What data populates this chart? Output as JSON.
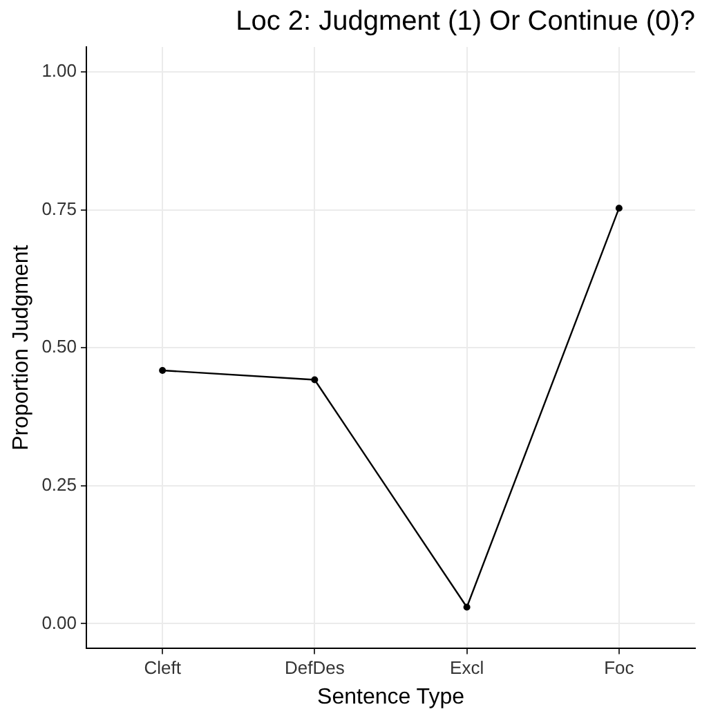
{
  "chart_data": {
    "type": "line",
    "title": "Loc 2: Judgment (1) Or Continue (0)?",
    "xlabel": "Sentence Type",
    "ylabel": "Proportion Judgment",
    "categories": [
      "Cleft",
      "DefDes",
      "Excl",
      "Foc"
    ],
    "series": [
      {
        "color": "#000000",
        "values": [
          0.459,
          0.442,
          0.03,
          0.753
        ]
      }
    ],
    "ylim": [
      -0.045,
      1.045
    ],
    "yticks": [
      {
        "value": 0,
        "label": "0.00"
      },
      {
        "value": 0.25,
        "label": "0.25"
      },
      {
        "value": 0.5,
        "label": "0.50"
      },
      {
        "value": 0.75,
        "label": "0.75"
      },
      {
        "value": 1,
        "label": "1.00"
      }
    ],
    "grid": true,
    "legend": false,
    "marker": "circle",
    "line_style": "solid"
  }
}
